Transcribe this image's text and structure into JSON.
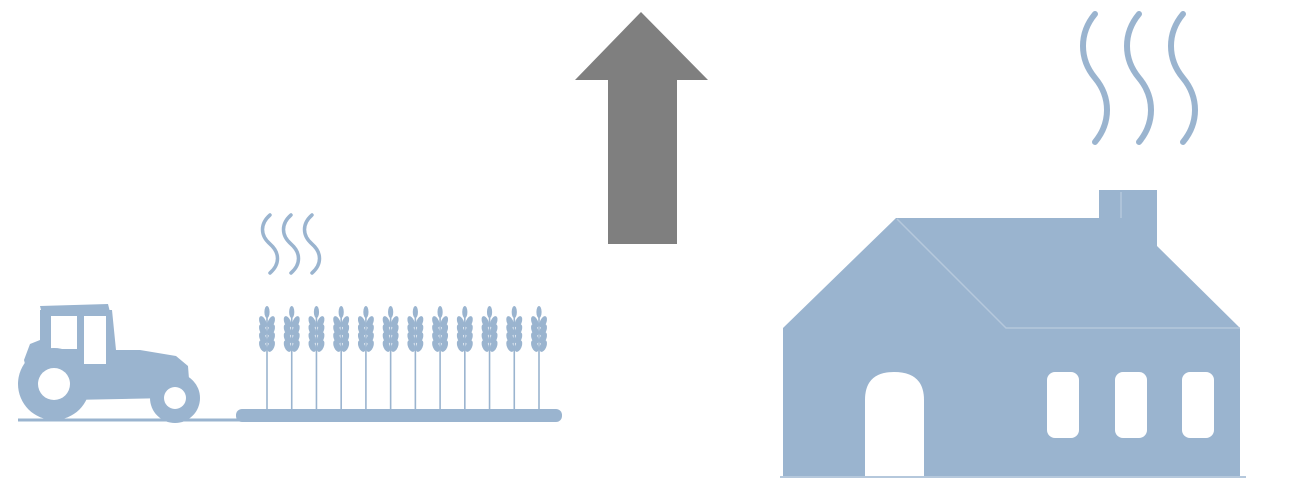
{
  "colors": {
    "background": "#ffffff",
    "illustration": "#9ab4cf",
    "arrow": "#7f7f7f",
    "window": "#ffffff",
    "edge": "#b5c8dc"
  },
  "scene": {
    "left_group": {
      "icon": "tractor-icon",
      "crop_icon": "wheat-field-icon",
      "emission_icon": "steam-waves-icon",
      "wheat_stalk_count": 12,
      "wave_count": 3
    },
    "center": {
      "icon": "up-arrow-icon",
      "direction": "up"
    },
    "right_group": {
      "icon": "farmhouse-icon",
      "emission_icon": "chimney-smoke-icon",
      "wave_count": 3,
      "window_count": 3
    }
  }
}
